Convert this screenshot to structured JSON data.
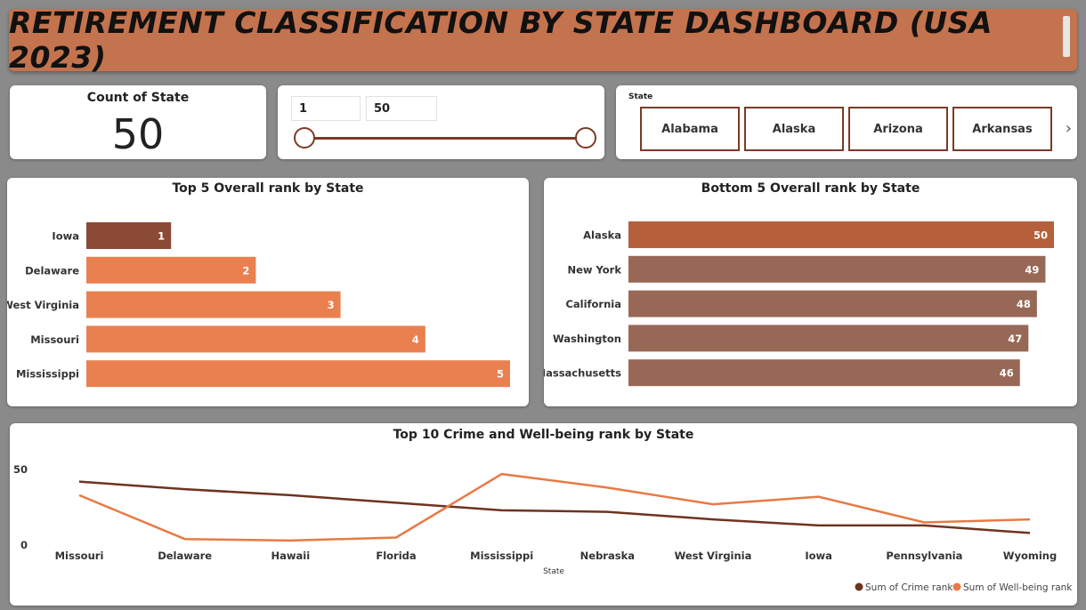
{
  "header": {
    "title": "RETIREMENT CLASSIFICATION BY STATE DASHBOARD (USA 2023)"
  },
  "kpi": {
    "label": "Count of State",
    "value": "50"
  },
  "range_slider": {
    "min_value": "1",
    "max_value": "50",
    "min": 1,
    "max": 50,
    "low": 1,
    "high": 50
  },
  "state_filter": {
    "label": "State",
    "options": [
      "Alabama",
      "Alaska",
      "Arizona",
      "Arkansas"
    ],
    "next_icon": "chevron-right-icon"
  },
  "colors": {
    "accent": "#c4734f",
    "dark_brown": "#7a3b26",
    "top_highlight": "#8b4a35",
    "top_bar": "#ea8050",
    "bottom_highlight": "#b5603a",
    "bottom_bar": "#986856",
    "crime_line": "#6e3320",
    "wellbeing_line": "#e87a45"
  },
  "chart_data": [
    {
      "type": "bar",
      "orientation": "horizontal",
      "title": "Top 5 Overall rank by State",
      "categories": [
        "Iowa",
        "Delaware",
        "West Virginia",
        "Missouri",
        "Mississippi"
      ],
      "values": [
        1,
        2,
        3,
        4,
        5
      ],
      "xlim": [
        0,
        5
      ],
      "data_labels": true
    },
    {
      "type": "bar",
      "orientation": "horizontal",
      "title": "Bottom 5 Overall rank by State",
      "categories": [
        "Alaska",
        "New York",
        "California",
        "Washington",
        "Massachusetts"
      ],
      "values": [
        50,
        49,
        48,
        47,
        46
      ],
      "xlim": [
        0,
        50
      ],
      "data_labels": true
    },
    {
      "type": "line",
      "title": "Top 10 Crime and Well-being rank by State",
      "xlabel": "State",
      "categories": [
        "Missouri",
        "Delaware",
        "Hawaii",
        "Florida",
        "Mississippi",
        "Nebraska",
        "West Virginia",
        "Iowa",
        "Pennsylvania",
        "Wyoming"
      ],
      "series": [
        {
          "name": "Sum of Crime rank",
          "values": [
            42,
            37,
            33,
            28,
            23,
            22,
            17,
            13,
            13,
            8
          ]
        },
        {
          "name": "Sum of Well-being rank",
          "values": [
            33,
            4,
            3,
            5,
            47,
            38,
            27,
            32,
            15,
            17
          ]
        }
      ],
      "y_ticks": [
        0,
        50
      ],
      "ylim": [
        0,
        50
      ],
      "legend_position": "bottom-right"
    }
  ]
}
